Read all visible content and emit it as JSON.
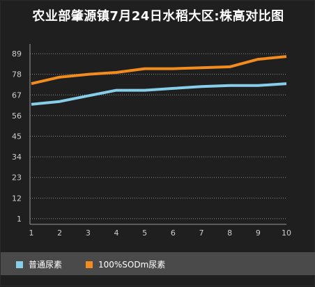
{
  "chart_data": {
    "type": "line",
    "title": "农业部肇源镇7月24日水稻大区:株高对比图",
    "xlabel": "",
    "ylabel": "",
    "categories": [
      "1",
      "2",
      "3",
      "4",
      "5",
      "6",
      "7",
      "8",
      "9",
      "10"
    ],
    "y_ticks": [
      "1",
      "12",
      "23",
      "34",
      "45",
      "56",
      "67",
      "78",
      "89"
    ],
    "ylim": [
      -2,
      92
    ],
    "grid": "horizontal-dotted",
    "legend_position": "bottom",
    "series": [
      {
        "name": "普通尿素",
        "color": "#87ceeb",
        "values": [
          62,
          63.5,
          66.5,
          69.5,
          69.5,
          70.5,
          71.5,
          72,
          72,
          73
        ]
      },
      {
        "name": "100%SODm尿素",
        "color": "#f28c1e",
        "values": [
          73,
          76.5,
          78,
          79,
          81,
          81,
          81.5,
          82,
          86,
          87.5
        ]
      }
    ]
  }
}
